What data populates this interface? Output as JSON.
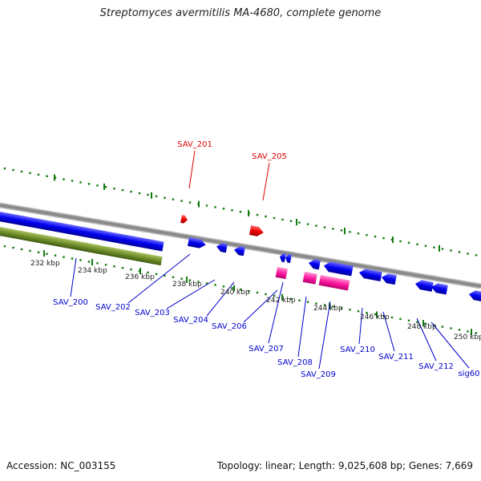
{
  "title": "Streptomyces avermitilis MA-4680, complete genome",
  "footer": {
    "accession": "Accession: NC_003155",
    "topology": "Topology: linear; Length: 9,025,608 bp; Genes: 7,669"
  },
  "colors": {
    "backbone": "#8a8a8a",
    "forward_gene": "#0000ee",
    "reverse_gene": "#ee0000",
    "rna_gene": "#ff2aa8",
    "feature_bar": "#6f8f2a",
    "ruler": "#117a11",
    "label_forward": "#0000cc",
    "label_reverse": "#dd0000"
  },
  "ticks": [
    "232 kbp",
    "234 kbp",
    "236 kbp",
    "238 kbp",
    "240 kbp",
    "242 kbp",
    "244 kbp",
    "246 kbp",
    "248 kbp",
    "250 kbp"
  ],
  "reverse_labels": [
    "SAV_201",
    "SAV_205"
  ],
  "forward_labels": [
    "SAV_200",
    "SAV_202",
    "SAV_203",
    "SAV_204",
    "SAV_206",
    "SAV_207",
    "SAV_208",
    "SAV_209",
    "SAV_210",
    "SAV_211",
    "SAV_212",
    "sig60"
  ]
}
